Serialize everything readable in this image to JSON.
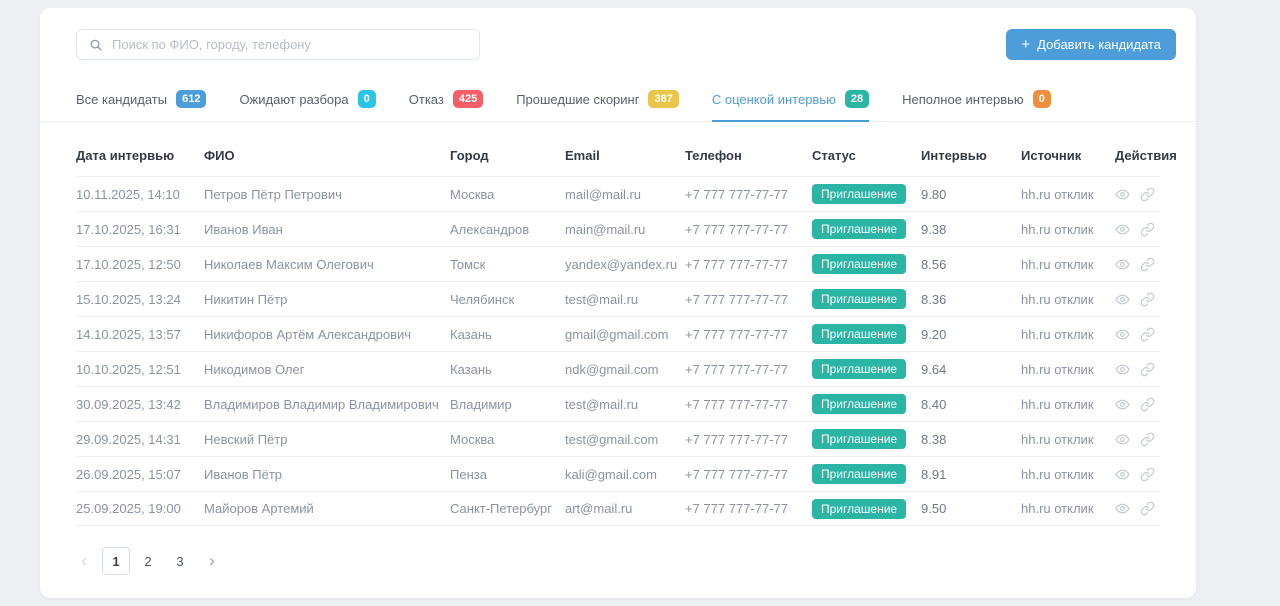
{
  "colors": {
    "accent_blue": "#4d9ddb",
    "status_badge_teal": "#2bb5a5",
    "badge_cyan": "#29c5e6",
    "badge_red": "#f45f68",
    "badge_yellow": "#e9c64a",
    "badge_orange": "#ee8f3c"
  },
  "search": {
    "placeholder": "Поиск по ФИО, городу, телефону"
  },
  "add_button": {
    "plus": "+",
    "label": "Добавить кандидата"
  },
  "tabs": [
    {
      "label": "Все кандидаты",
      "count": "612",
      "color": "#4d9ddb",
      "active": false
    },
    {
      "label": "Ожидают разбора",
      "count": "0",
      "color": "#29c5e6",
      "active": false
    },
    {
      "label": "Отказ",
      "count": "425",
      "color": "#f45f68",
      "active": false
    },
    {
      "label": "Прошедшие скоринг",
      "count": "387",
      "color": "#e9c64a",
      "active": false
    },
    {
      "label": "С оценкой интервью",
      "count": "28",
      "color": "#2bb5a5",
      "active": true
    },
    {
      "label": "Неполное интервью",
      "count": "0",
      "color": "#ee8f3c",
      "active": false
    }
  ],
  "table": {
    "headers": [
      "Дата интервью",
      "ФИО",
      "Город",
      "Email",
      "Телефон",
      "Статус",
      "Интервью",
      "Источник",
      "Действия"
    ],
    "rows": [
      {
        "date": "10.11.2025, 14:10",
        "name": "Петров Пётр Петрович",
        "city": "Москва",
        "email": "mail@mail.ru",
        "phone": "+7 777 777-77-77",
        "status": "Приглашение",
        "score": "9.80",
        "source": "hh.ru отклик"
      },
      {
        "date": "17.10.2025, 16:31",
        "name": "Иванов Иван",
        "city": "Александров",
        "email": "main@mail.ru",
        "phone": "+7 777 777-77-77",
        "status": "Приглашение",
        "score": "9.38",
        "source": "hh.ru отклик"
      },
      {
        "date": "17.10.2025, 12:50",
        "name": "Николаев Максим Олегович",
        "city": "Томск",
        "email": "yandex@yandex.ru",
        "phone": "+7 777 777-77-77",
        "status": "Приглашение",
        "score": "8.56",
        "source": "hh.ru отклик"
      },
      {
        "date": "15.10.2025, 13:24",
        "name": "Никитин Пётр",
        "city": "Челябинск",
        "email": "test@mail.ru",
        "phone": "+7 777 777-77-77",
        "status": "Приглашение",
        "score": "8.36",
        "source": "hh.ru отклик"
      },
      {
        "date": "14.10.2025, 13:57",
        "name": "Никифоров Артём Александрович",
        "city": "Казань",
        "email": "gmail@gmail.com",
        "phone": "+7 777 777-77-77",
        "status": "Приглашение",
        "score": "9.20",
        "source": "hh.ru отклик"
      },
      {
        "date": "10.10.2025, 12:51",
        "name": "Никодимов Олег",
        "city": "Казань",
        "email": "ndk@gmail.com",
        "phone": "+7 777 777-77-77",
        "status": "Приглашение",
        "score": "9.64",
        "source": "hh.ru отклик"
      },
      {
        "date": "30.09.2025, 13:42",
        "name": "Владимиров Владимир Владимирович",
        "city": "Владимир",
        "email": "test@mail.ru",
        "phone": "+7 777 777-77-77",
        "status": "Приглашение",
        "score": "8.40",
        "source": "hh.ru отклик"
      },
      {
        "date": "29.09.2025, 14:31",
        "name": "Невский Пётр",
        "city": "Москва",
        "email": "test@gmail.com",
        "phone": "+7 777 777-77-77",
        "status": "Приглашение",
        "score": "8.38",
        "source": "hh.ru отклик"
      },
      {
        "date": "26.09.2025, 15:07",
        "name": "Иванов Пётр",
        "city": "Пенза",
        "email": "kali@gmail.com",
        "phone": "+7 777 777-77-77",
        "status": "Приглашение",
        "score": "8.91",
        "source": "hh.ru отклик"
      },
      {
        "date": "25.09.2025, 19:00",
        "name": "Майоров Артемий",
        "city": "Санкт-Петербург",
        "email": "art@mail.ru",
        "phone": "+7 777 777-77-77",
        "status": "Приглашение",
        "score": "9.50",
        "source": "hh.ru отклик"
      }
    ]
  },
  "pagination": {
    "prev_icon": "‹",
    "next_icon": "›",
    "pages": [
      "1",
      "2",
      "3"
    ],
    "active_page": "1"
  }
}
